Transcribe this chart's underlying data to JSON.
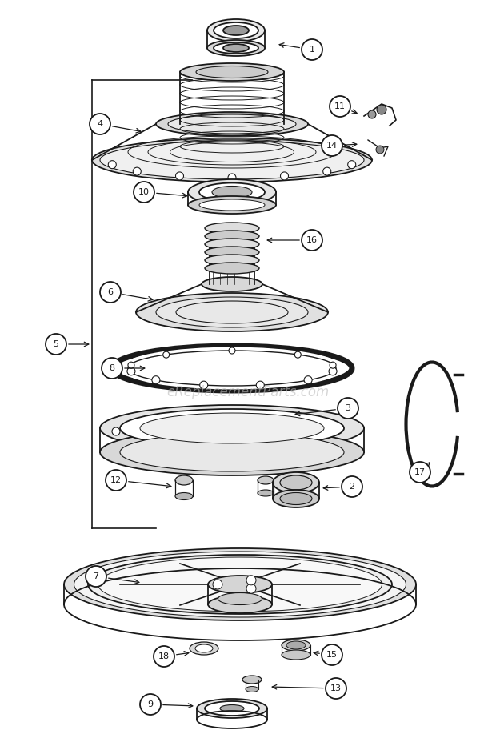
{
  "bg_color": "#ffffff",
  "line_color": "#1a1a1a",
  "watermark": "eReplacementParts.com",
  "watermark_color": "#bbbbbb",
  "watermark_alpha": 0.6,
  "fig_width": 6.2,
  "fig_height": 9.17,
  "dpi": 100
}
